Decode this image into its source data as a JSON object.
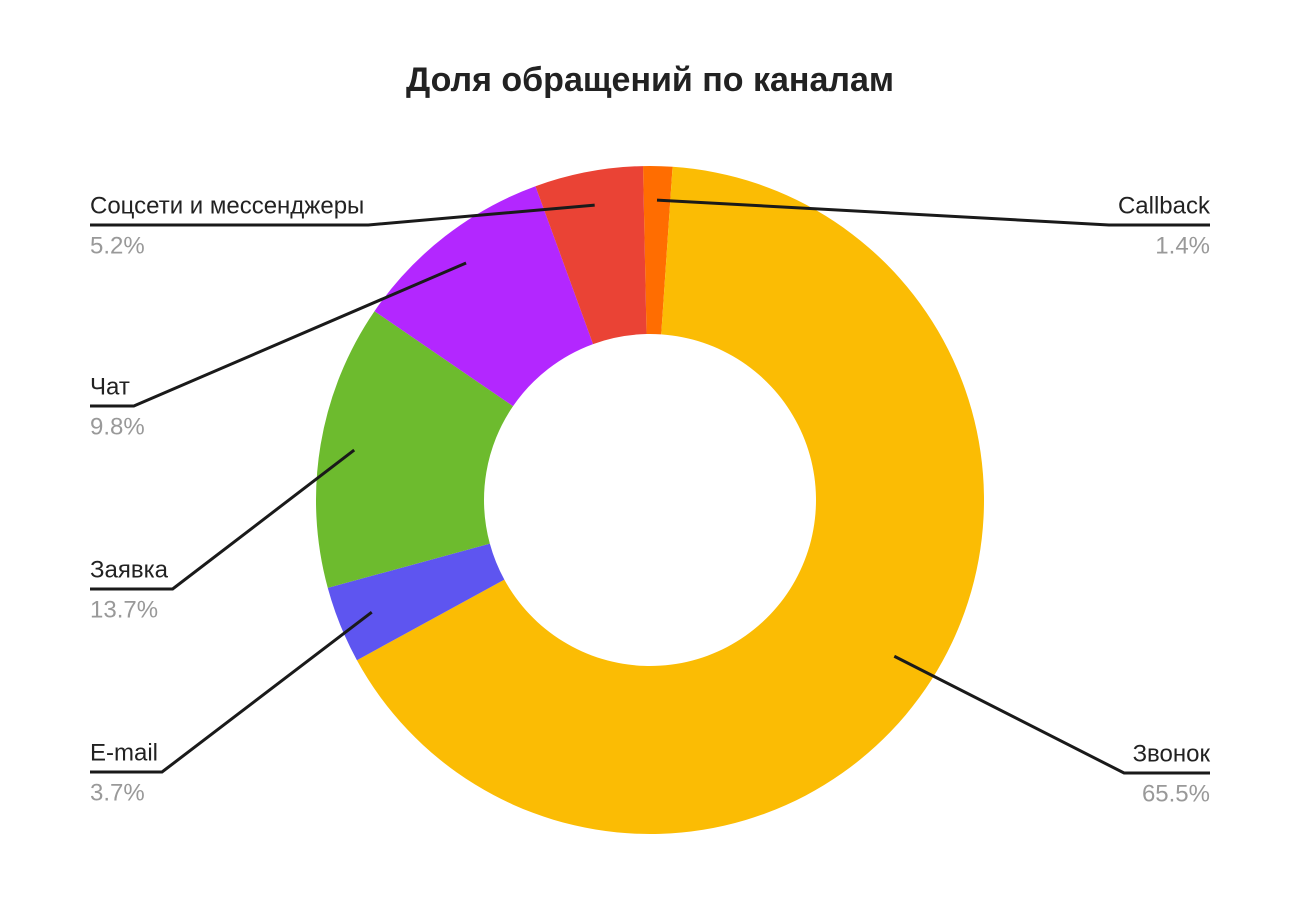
{
  "chart_data": {
    "type": "donut",
    "title": "Доля обращений по каналам",
    "categories": [
      "Callback",
      "Звонок",
      "E-mail",
      "Заявка",
      "Чат",
      "Соцсети и мессенджеры"
    ],
    "values": [
      1.4,
      65.5,
      3.7,
      13.7,
      9.8,
      5.2
    ],
    "value_labels": [
      "1.4%",
      "65.5%",
      "3.7%",
      "13.7%",
      "9.8%",
      "5.2%"
    ],
    "colors": [
      "#ff6d01",
      "#fbbc04",
      "#5e55f0",
      "#6dbb2e",
      "#b327ff",
      "#ea4335"
    ]
  }
}
